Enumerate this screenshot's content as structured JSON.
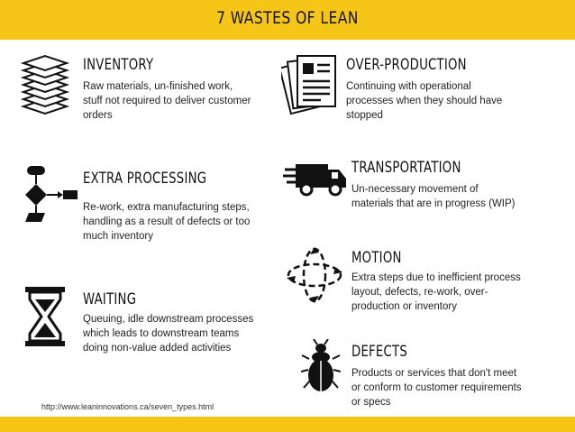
{
  "title": "7 Wastes of Lean",
  "items": [
    {
      "heading": "Inventory",
      "description": "Raw materials, un-finished work, stuff not required to deliver customer orders",
      "icon": "stacked-papers-icon"
    },
    {
      "heading": "Over-Production",
      "description": "Continuing with operational processes when they should have stopped",
      "icon": "documents-icon"
    },
    {
      "heading": "Extra Processing",
      "description": "Re-work, extra manufacturing steps, handling as a result of defects or too much inventory",
      "icon": "flowchart-icon"
    },
    {
      "heading": "Transportation",
      "description": "Un-necessary movement of materials that are in progress (WIP)",
      "icon": "truck-icon"
    },
    {
      "heading": "Motion",
      "description": "Extra steps due to inefficient process layout, defects, re-work, over-production or inventory",
      "icon": "rotation-arrows-icon"
    },
    {
      "heading": "Waiting",
      "description": "Queuing, idle downstream processes which leads to downstream teams doing non-value added activities",
      "icon": "hourglass-icon"
    },
    {
      "heading": "Defects",
      "description": "Products or services that don't meet or conform to customer requirements or specs",
      "icon": "bug-icon"
    }
  ],
  "footer_url": "http://www.leaninnovations.ca/seven_types.html",
  "colors": {
    "accent": "#f5c518",
    "text": "#222222"
  }
}
